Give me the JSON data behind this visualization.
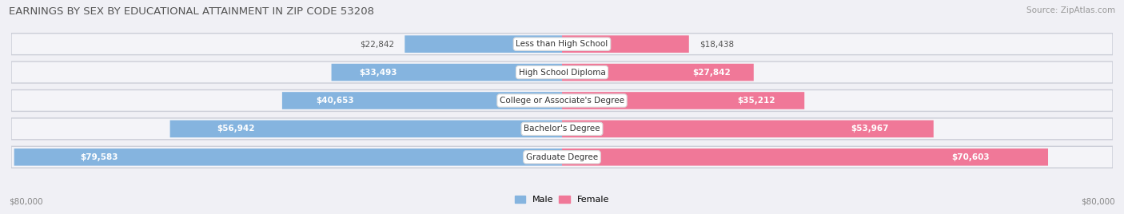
{
  "title": "EARNINGS BY SEX BY EDUCATIONAL ATTAINMENT IN ZIP CODE 53208",
  "source": "Source: ZipAtlas.com",
  "categories": [
    "Less than High School",
    "High School Diploma",
    "College or Associate's Degree",
    "Bachelor's Degree",
    "Graduate Degree"
  ],
  "male_values": [
    22842,
    33493,
    40653,
    56942,
    79583
  ],
  "female_values": [
    18438,
    27842,
    35212,
    53967,
    70603
  ],
  "max_value": 80000,
  "male_color": "#85b4df",
  "female_color": "#f07898",
  "male_label": "Male",
  "female_label": "Female",
  "axis_label_left": "$80,000",
  "axis_label_right": "$80,000",
  "bg_color": "#f0f0f5",
  "row_bg_color": "#e2e4ec",
  "bar_bg_light": "#f8f8fc",
  "title_fontsize": 9.5,
  "source_fontsize": 7.5,
  "label_fontsize": 7.5,
  "value_fontsize": 7.5,
  "cat_fontsize": 7.5
}
